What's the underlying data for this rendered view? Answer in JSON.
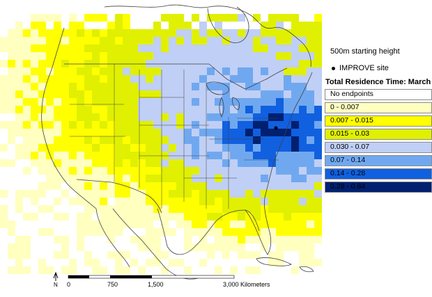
{
  "map": {
    "start_height_note": "500m starting height",
    "site_legend_label": "IMPROVE site",
    "colors": {
      "water": "#ffffff",
      "land_outline": "#404040",
      "state_line": "#404040"
    }
  },
  "legend": {
    "title": "Total Residence Time: March",
    "classes": [
      {
        "label": "No endpoints",
        "color": "#ffffff"
      },
      {
        "label": "0 - 0.007",
        "color": "#ffffc0"
      },
      {
        "label": "0.007 - 0.015",
        "color": "#ffff00"
      },
      {
        "label": "0.015 - 0.03",
        "color": "#e0f000"
      },
      {
        "label": "0.030 - 0.07",
        "color": "#c0cff5"
      },
      {
        "label": "0.07 - 0.14",
        "color": "#70a8f0"
      },
      {
        "label": "0.14 - 0.28",
        "color": "#1060e0"
      },
      {
        "label": "0.28 - 0.84",
        "color": "#002070"
      }
    ]
  },
  "scale_bar": {
    "north_label": "N",
    "ticks": [
      "0",
      "750",
      "1,500",
      "3,000 Kilometers"
    ]
  }
}
